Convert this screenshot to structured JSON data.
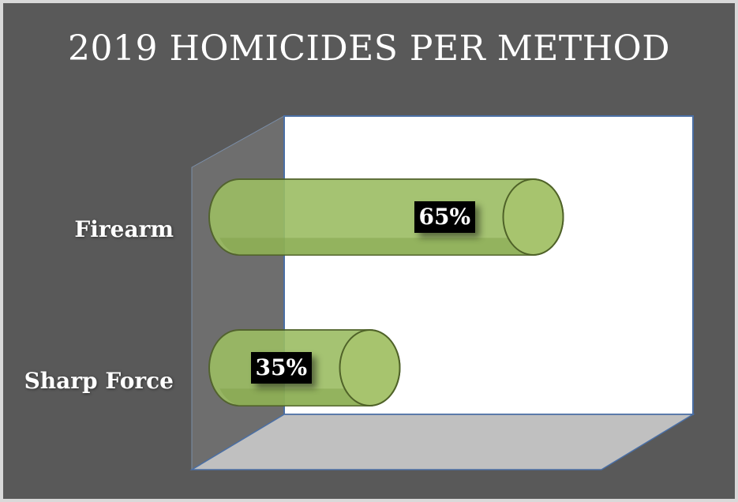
{
  "chart_data": {
    "type": "bar",
    "orientation": "horizontal",
    "style": "3d-cylinder",
    "title": "2019 HOMICIDES PER METHOD",
    "categories": [
      "Firearm",
      "Sharp Force"
    ],
    "values": [
      65,
      35
    ],
    "data_labels": [
      "65%",
      "35%"
    ],
    "xlim": [
      0,
      100
    ],
    "grid": false,
    "legend": "none"
  },
  "colors": {
    "background": "#595959",
    "border": "#d9d9d9",
    "back_wall": "#ffffff",
    "side_wall": "#6e6e6e",
    "floor": "#c0c0c0",
    "bar_fill": "#9cbd63",
    "bar_edge": "#4f6228",
    "text": "#ffffff",
    "data_label_bg": "#000000"
  }
}
